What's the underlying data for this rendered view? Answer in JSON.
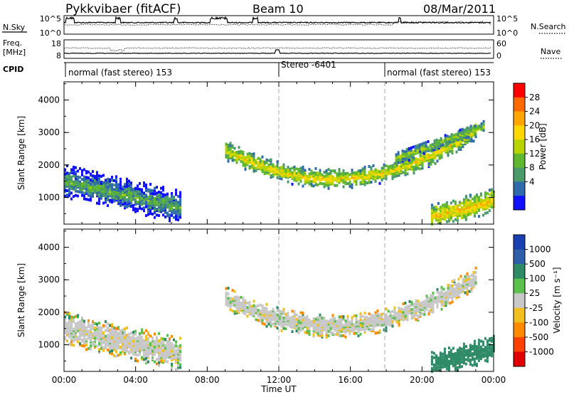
{
  "header": {
    "station": "Pykkvibaer (fitACF)",
    "beam": "Beam 10",
    "date": "08/Mar/2011"
  },
  "noise_panel": {
    "left_label": "N.Sky",
    "right_label": "N.Search",
    "ticks": [
      "10^5",
      "10^0"
    ]
  },
  "freq_panel": {
    "left_label_1": "Freq.",
    "left_label_2": "[MHz]",
    "right_label": "Nave",
    "left_ticks": [
      "18",
      "8"
    ],
    "right_ticks": [
      "60",
      "0"
    ]
  },
  "cpid": {
    "label": "CPID",
    "segments": [
      {
        "start_hour": 0,
        "text": "normal (fast stereo) 153"
      },
      {
        "start_hour": 12,
        "text": "Stereo -6401"
      },
      {
        "start_hour": 18,
        "text": "normal (fast stereo) 153"
      }
    ]
  },
  "x_axis": {
    "label": "Time UT",
    "ticks": [
      "00:00",
      "04:00",
      "08:00",
      "12:00",
      "16:00",
      "20:00",
      "00:00"
    ]
  },
  "power_colorbar": {
    "title": "Power [dB]",
    "ticks": [
      "28",
      "24",
      "20",
      "16",
      "12",
      "8",
      "4"
    ],
    "colors": [
      "#ff0000",
      "#ff6a00",
      "#ffa500",
      "#ffd700",
      "#b8d400",
      "#5fb830",
      "#4a9a6a",
      "#2f6ba8",
      "#1010ff"
    ]
  },
  "velocity_colorbar": {
    "title": "Velocity [m s⁻¹]",
    "ticks": [
      "1000",
      "500",
      "100",
      "25",
      "-25",
      "-100",
      "-500",
      "-1000"
    ],
    "colors": [
      "#1a3fb0",
      "#2e5fa8",
      "#2f8a66",
      "#5bc04c",
      "#c8c8c8",
      "#f0c020",
      "#ff8a00",
      "#ff4000",
      "#e00000"
    ]
  },
  "chart_data": [
    {
      "type": "heatmap",
      "title": "Power",
      "ylabel": "Slant Range [km]",
      "xlabel": "",
      "xlim": [
        0,
        24
      ],
      "ylim": [
        180,
        4560
      ],
      "yticks": [
        1000,
        2000,
        3000,
        4000
      ],
      "zlim": [
        0,
        30
      ],
      "zlabel": "Power [dB]",
      "features": [
        {
          "name": "main band",
          "start_hour": 9.0,
          "end_hour": 23.0,
          "range_start_km": 2450,
          "range_mid_km": 1600,
          "range_end_km": 3100,
          "width_km": 300,
          "power_db": 18
        },
        {
          "name": "upper band",
          "start_hour": 18.5,
          "end_hour": 23.5,
          "range_start_km": 2200,
          "range_end_km": 3200,
          "width_km": 200,
          "power_db": 14
        },
        {
          "name": "near range",
          "start_hour": 0.0,
          "end_hour": 6.5,
          "range_start_km": 1500,
          "range_end_km": 700,
          "width_km": 500,
          "power_db": 10
        },
        {
          "name": "evening near range",
          "start_hour": 20.5,
          "end_hour": 24.0,
          "range_start_km": 400,
          "range_end_km": 900,
          "width_km": 400,
          "power_db": 20
        }
      ]
    },
    {
      "type": "heatmap",
      "title": "Velocity",
      "ylabel": "Slant Range [km]",
      "xlabel": "Time UT",
      "xlim": [
        0,
        24
      ],
      "ylim": [
        180,
        4560
      ],
      "yticks": [
        1000,
        2000,
        3000,
        4000
      ],
      "zlim": [
        -1000,
        1000
      ],
      "zlabel": "Velocity [m s⁻¹]",
      "features": [
        {
          "name": "main band",
          "start_hour": 9.0,
          "end_hour": 23.0,
          "range_start_km": 2450,
          "range_mid_km": 1600,
          "range_end_km": 3100,
          "width_km": 350,
          "velocity_ms": 0
        },
        {
          "name": "near range",
          "start_hour": 0.0,
          "end_hour": 6.5,
          "range_start_km": 1500,
          "range_end_km": 700,
          "width_km": 500,
          "velocity_ms": 0
        },
        {
          "name": "evening near range",
          "start_hour": 20.5,
          "end_hour": 24.0,
          "range_start_km": 400,
          "range_end_km": 900,
          "width_km": 400,
          "velocity_ms": 300
        }
      ]
    }
  ]
}
